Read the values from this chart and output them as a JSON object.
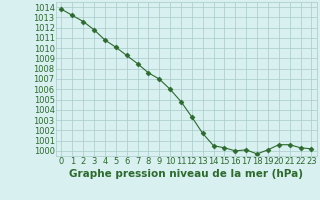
{
  "x": [
    0,
    1,
    2,
    3,
    4,
    5,
    6,
    7,
    8,
    9,
    10,
    11,
    12,
    13,
    14,
    15,
    16,
    17,
    18,
    19,
    20,
    21,
    22,
    23
  ],
  "y": [
    1013.8,
    1013.2,
    1012.6,
    1011.8,
    1010.8,
    1010.1,
    1009.3,
    1008.5,
    1007.6,
    1007.0,
    1006.0,
    1004.8,
    1003.3,
    1001.7,
    1000.5,
    1000.3,
    1000.0,
    1000.1,
    999.7,
    1000.1,
    1000.6,
    1000.6,
    1000.3,
    1000.2
  ],
  "line_color": "#2d6a2d",
  "marker": "D",
  "marker_size": 2.5,
  "bg_color": "#d8f0f0",
  "grid_color": "#aacaca",
  "xlabel": "Graphe pression niveau de la mer (hPa)",
  "xlabel_color": "#2d6a2d",
  "xlabel_fontsize": 7.5,
  "tick_color": "#2d6a2d",
  "tick_fontsize": 6,
  "ylim": [
    999.5,
    1014.5
  ],
  "yticks": [
    1000,
    1001,
    1002,
    1003,
    1004,
    1005,
    1006,
    1007,
    1008,
    1009,
    1010,
    1011,
    1012,
    1013,
    1014
  ],
  "xticks": [
    0,
    1,
    2,
    3,
    4,
    5,
    6,
    7,
    8,
    9,
    10,
    11,
    12,
    13,
    14,
    15,
    16,
    17,
    18,
    19,
    20,
    21,
    22,
    23
  ]
}
